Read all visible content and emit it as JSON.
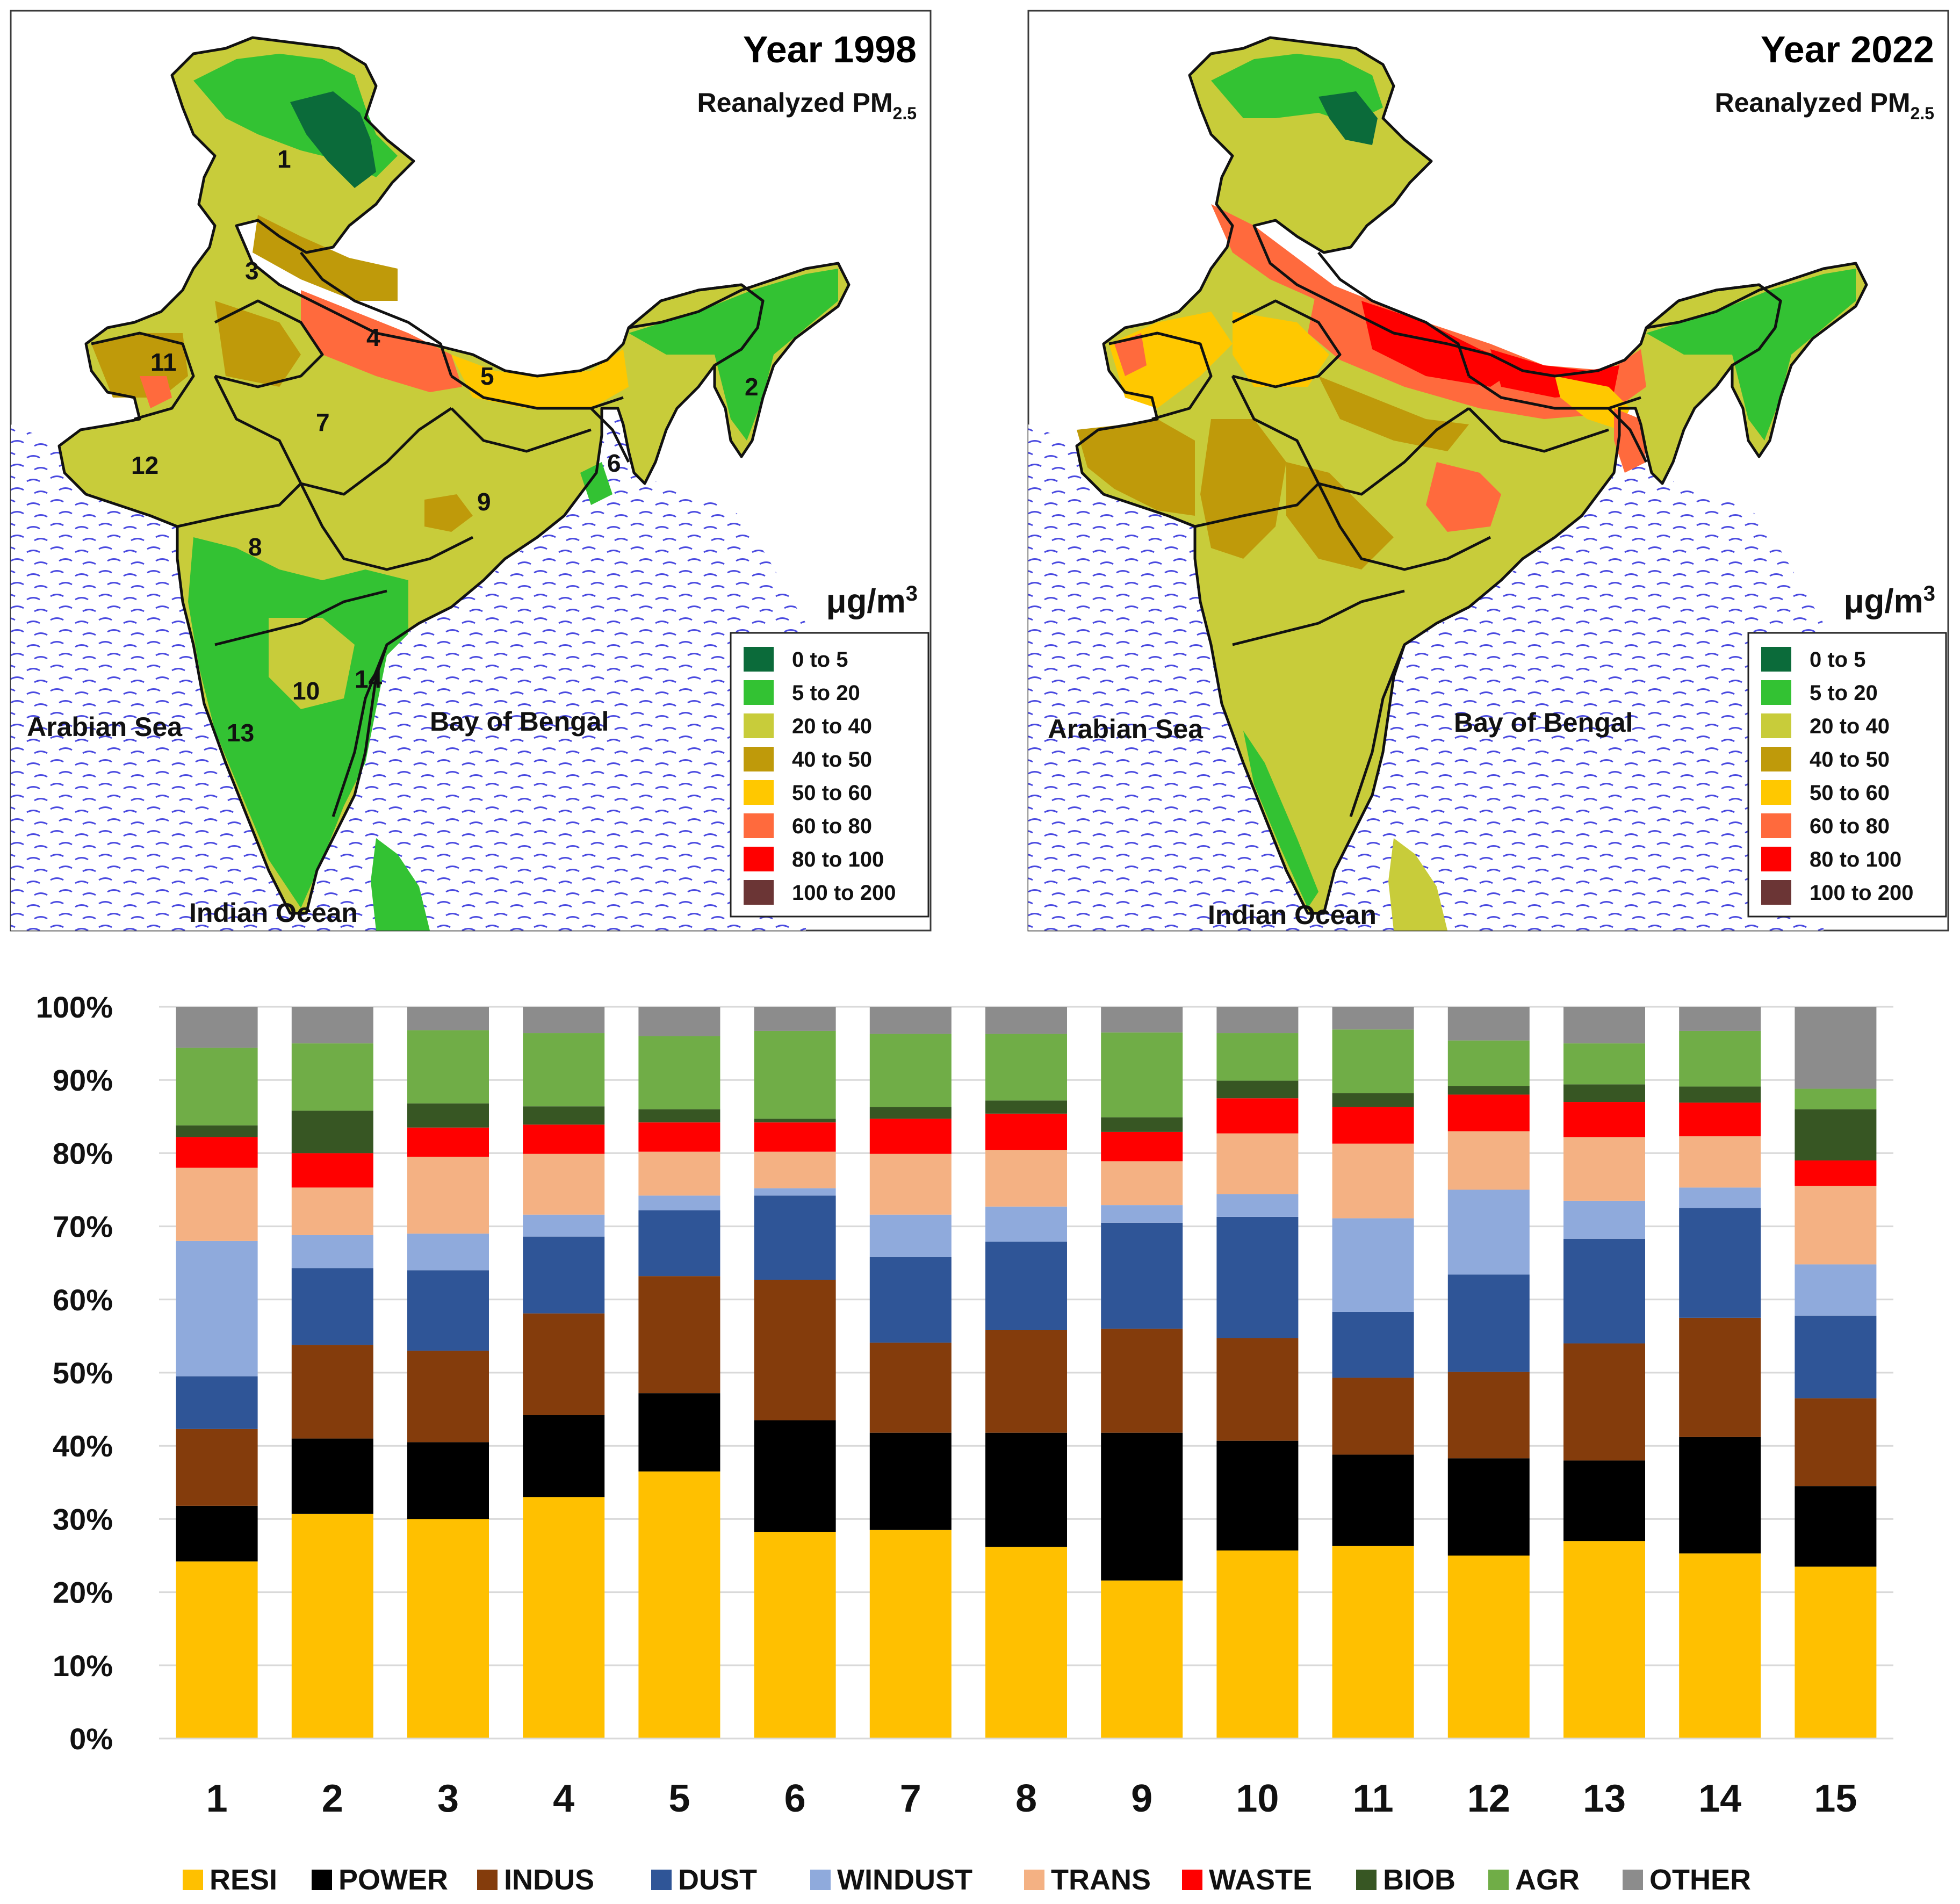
{
  "maps": [
    {
      "title": "Year 1998",
      "subtitle": "Reanalyzed PM",
      "subtitle_sub": "2.5",
      "unit_base": "μg/m",
      "unit_sup": "3",
      "seas": {
        "arabian": "Arabian Sea",
        "bengal": "Bay of Bengal",
        "indian": "Indian Ocean"
      },
      "region_numbers": [
        "1",
        "2",
        "3",
        "4",
        "5",
        "6",
        "7",
        "8",
        "9",
        "10",
        "11",
        "12",
        "13",
        "14"
      ],
      "legend": [
        {
          "label": "0  to  5",
          "color": "#0b6b3a"
        },
        {
          "label": "5  to  20",
          "color": "#33c233"
        },
        {
          "label": "20  to  40",
          "color": "#c8cc3a"
        },
        {
          "label": "40  to  50",
          "color": "#bf9a0a"
        },
        {
          "label": "50  to  60",
          "color": "#ffc800"
        },
        {
          "label": "60  to  80",
          "color": "#ff6a3d"
        },
        {
          "label": "80  to  100",
          "color": "#ff0000"
        },
        {
          "label": "100  to  200",
          "color": "#6b3535"
        }
      ]
    },
    {
      "title": "Year 2022",
      "subtitle": "Reanalyzed PM",
      "subtitle_sub": "2.5",
      "unit_base": "μg/m",
      "unit_sup": "3",
      "seas": {
        "arabian": "Arabian Sea",
        "bengal": "Bay of Bengal",
        "indian": "Indian Ocean"
      },
      "legend": [
        {
          "label": "0  to  5",
          "color": "#0b6b3a"
        },
        {
          "label": "5  to  20",
          "color": "#33c233"
        },
        {
          "label": "20  to  40",
          "color": "#c8cc3a"
        },
        {
          "label": "40  to  50",
          "color": "#bf9a0a"
        },
        {
          "label": "50  to  60",
          "color": "#ffc800"
        },
        {
          "label": "60  to  80",
          "color": "#ff6a3d"
        },
        {
          "label": "80  to  100",
          "color": "#ff0000"
        },
        {
          "label": "100  to  200",
          "color": "#6b3535"
        }
      ]
    }
  ],
  "chart_data": {
    "type": "bar",
    "stacked": true,
    "title": "",
    "xlabel": "",
    "ylabel": "",
    "ylim": [
      0,
      100
    ],
    "yticks": [
      "0%",
      "10%",
      "20%",
      "30%",
      "40%",
      "50%",
      "60%",
      "70%",
      "80%",
      "90%",
      "100%"
    ],
    "grid": true,
    "legend_position": "bottom",
    "categories": [
      "1",
      "2",
      "3",
      "4",
      "5",
      "6",
      "7",
      "8",
      "9",
      "10",
      "11",
      "12",
      "13",
      "14",
      "15"
    ],
    "series": [
      {
        "name": "RESI",
        "color": "#ffc000",
        "values": [
          24.2,
          30.7,
          30.0,
          33.0,
          36.5,
          28.2,
          28.5,
          26.2,
          21.6,
          25.7,
          26.3,
          25.0,
          27.0,
          25.3,
          23.5
        ]
      },
      {
        "name": "POWER",
        "color": "#000000",
        "values": [
          7.6,
          10.3,
          10.5,
          11.2,
          10.7,
          15.3,
          13.3,
          15.6,
          20.2,
          15.0,
          12.5,
          13.3,
          11.0,
          15.9,
          11.0
        ]
      },
      {
        "name": "INDUS",
        "color": "#843c0c",
        "values": [
          10.5,
          12.8,
          12.5,
          13.9,
          16.0,
          19.2,
          12.3,
          14.0,
          14.2,
          14.0,
          10.5,
          11.8,
          16.0,
          16.3,
          12.0
        ]
      },
      {
        "name": "DUST",
        "color": "#2f5597",
        "values": [
          7.2,
          10.5,
          11.0,
          10.5,
          9.0,
          11.5,
          11.7,
          12.1,
          14.5,
          16.6,
          9.0,
          13.3,
          14.3,
          15.0,
          11.3
        ]
      },
      {
        "name": "WINDUST",
        "color": "#8faadc",
        "values": [
          18.5,
          4.5,
          5.0,
          3.0,
          2.0,
          1.0,
          5.8,
          4.8,
          2.4,
          3.1,
          12.8,
          11.6,
          5.2,
          2.8,
          7.0
        ]
      },
      {
        "name": "TRANS",
        "color": "#f4b183",
        "values": [
          10.0,
          6.5,
          10.5,
          8.3,
          6.0,
          5.0,
          8.3,
          7.7,
          6.0,
          8.3,
          10.2,
          8.0,
          8.7,
          7.0,
          10.7
        ]
      },
      {
        "name": "WASTE",
        "color": "#ff0000",
        "values": [
          4.2,
          4.7,
          4.0,
          4.0,
          4.0,
          4.0,
          4.8,
          5.0,
          4.0,
          4.8,
          5.0,
          5.0,
          4.8,
          4.6,
          3.5
        ]
      },
      {
        "name": "BIOB",
        "color": "#375623",
        "values": [
          1.6,
          5.8,
          3.3,
          2.5,
          1.8,
          0.5,
          1.6,
          1.8,
          2.0,
          2.4,
          1.9,
          1.2,
          2.4,
          2.2,
          7.0
        ]
      },
      {
        "name": "AGR",
        "color": "#70ad47",
        "values": [
          10.6,
          9.2,
          10.0,
          10.0,
          10.0,
          12.0,
          10.0,
          9.1,
          11.6,
          6.5,
          8.7,
          6.2,
          5.6,
          7.6,
          2.8
        ]
      },
      {
        "name": "OTHER",
        "color": "#8c8c8c",
        "values": [
          5.6,
          5.0,
          3.2,
          3.6,
          4.0,
          3.3,
          3.7,
          3.7,
          3.5,
          3.6,
          3.1,
          4.6,
          5.0,
          3.3,
          11.2
        ]
      }
    ]
  }
}
